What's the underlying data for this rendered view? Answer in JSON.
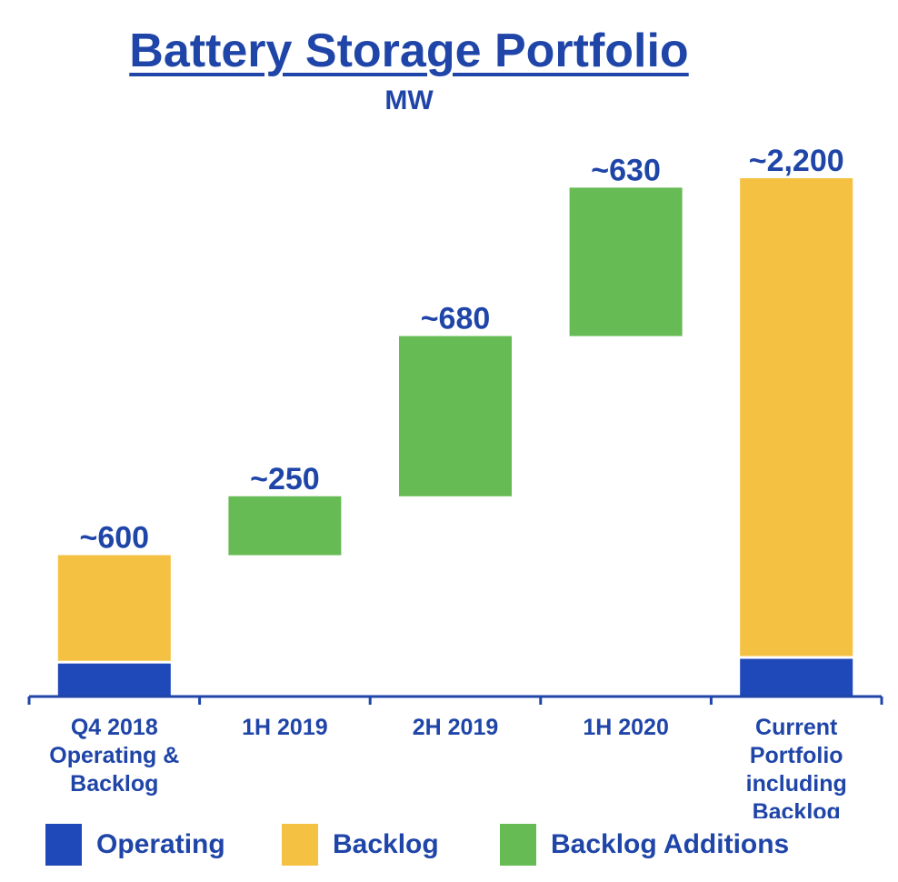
{
  "colors": {
    "text": "#1f45a8",
    "operating": "#1f48b8",
    "backlog": "#f5c143",
    "additions": "#66bb54",
    "axis": "#1f45a8"
  },
  "chart_data": {
    "type": "bar",
    "subtype": "waterfall",
    "title": "Battery Storage Portfolio",
    "ylabel": "MW",
    "categories": [
      [
        "Q4 2018",
        "Operating &",
        "Backlog"
      ],
      [
        "1H 2019"
      ],
      [
        "2H 2019"
      ],
      [
        "1H 2020"
      ],
      [
        "Current",
        "Portfolio",
        "including",
        "Backlog"
      ]
    ],
    "ylim": [
      0,
      2300
    ],
    "bars": [
      {
        "category_index": 0,
        "segments": [
          {
            "series": "Operating",
            "from": 0,
            "to": 140
          },
          {
            "series": "Backlog",
            "from": 140,
            "to": 600
          }
        ],
        "label": "~600"
      },
      {
        "category_index": 1,
        "segments": [
          {
            "series": "Backlog Additions",
            "from": 600,
            "to": 850
          }
        ],
        "label": "~250"
      },
      {
        "category_index": 2,
        "segments": [
          {
            "series": "Backlog Additions",
            "from": 850,
            "to": 1530
          }
        ],
        "label": "~680"
      },
      {
        "category_index": 3,
        "segments": [
          {
            "series": "Backlog Additions",
            "from": 1530,
            "to": 2160
          }
        ],
        "label": "~630"
      },
      {
        "category_index": 4,
        "segments": [
          {
            "series": "Operating",
            "from": 0,
            "to": 160
          },
          {
            "series": "Backlog",
            "from": 160,
            "to": 2200
          }
        ],
        "label": "~2,200"
      }
    ],
    "legend": [
      {
        "name": "Operating",
        "color_key": "operating"
      },
      {
        "name": "Backlog",
        "color_key": "backlog"
      },
      {
        "name": "Backlog Additions",
        "color_key": "additions"
      }
    ]
  }
}
